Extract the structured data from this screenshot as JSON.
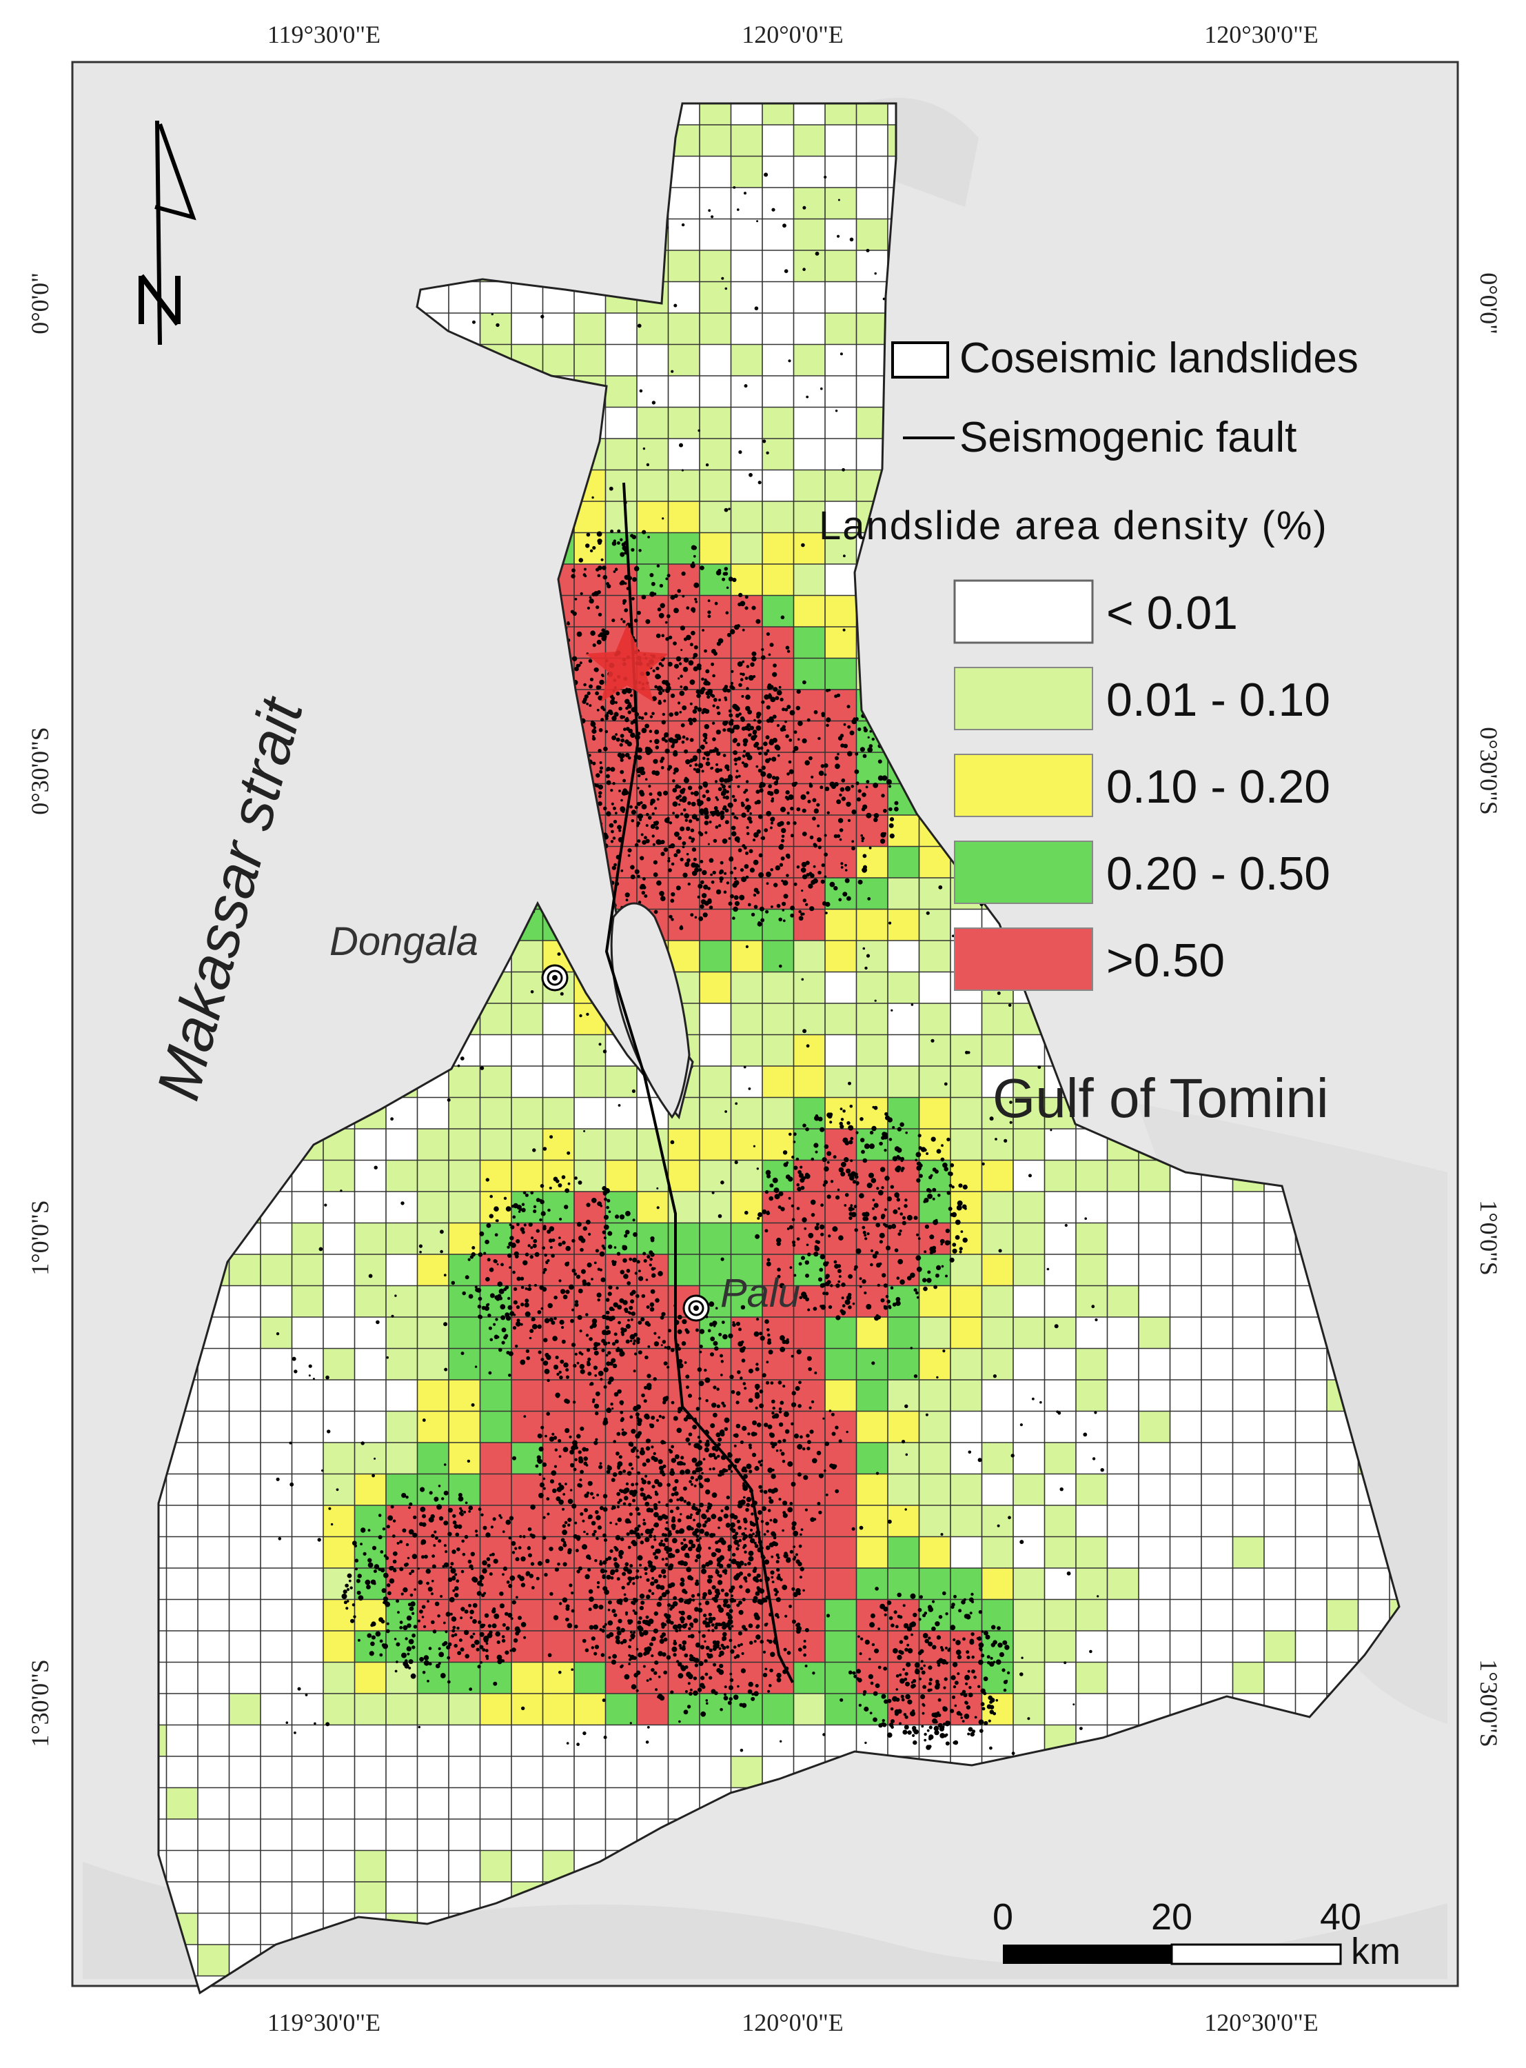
{
  "map": {
    "coords": {
      "top": [
        "119°30'0\"E",
        "120°0'0\"E",
        "120°30'0\"E"
      ],
      "bottom": [
        "119°30'0\"E",
        "120°0'0\"E",
        "120°30'0\"E"
      ],
      "left": [
        "0°0'0\"",
        "0°30'0\"S",
        "1°0'0\"S",
        "1°30'0\"S"
      ],
      "right": [
        "0°0'0\"",
        "0°30'0\"S",
        "1°0'0\"S",
        "1°30'0\"S"
      ]
    },
    "places": {
      "sea_west": "Makassar strait",
      "sea_east": "Gulf of Tomini",
      "town_1": "Dongala",
      "town_2": "Palu"
    },
    "legend": {
      "item_landslides": "Coseismic landslides",
      "item_fault": "Seismogenic fault",
      "density_title": "Landslide area density  (%)",
      "classes": [
        {
          "label": "< 0.01",
          "color": "#ffffff"
        },
        {
          "label": "0.01 - 0.10",
          "color": "#d6f59b"
        },
        {
          "label": "0.10 - 0.20",
          "color": "#f7f55a"
        },
        {
          "label": "0.20 - 0.50",
          "color": "#6ad85a"
        },
        {
          "label": ">0.50",
          "color": "#e8565a"
        }
      ]
    },
    "scale_bar": {
      "ticks": [
        "0",
        "20",
        "40"
      ],
      "unit": "km"
    },
    "colors": {
      "background": "#e7e7e7",
      "grid_line": "#333333",
      "landslide_point": "#000000",
      "epicenter": "#e53030"
    },
    "icons": [
      "north-arrow-icon",
      "epicenter-star-icon",
      "town-marker-icon"
    ]
  }
}
